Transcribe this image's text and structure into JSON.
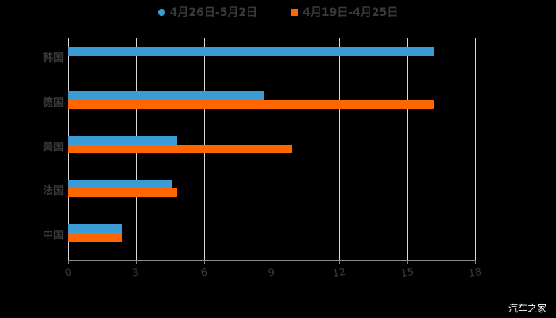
{
  "chart_data": {
    "type": "bar",
    "orientation": "horizontal",
    "title": "",
    "xlabel": "",
    "ylabel": "",
    "categories": [
      "韩国",
      "德国",
      "美国",
      "法国",
      "中国"
    ],
    "series": [
      {
        "name": "4月26日-5月2日",
        "color": "#3a9bd5",
        "values": [
          16.2,
          8.7,
          4.8,
          4.6,
          2.4
        ]
      },
      {
        "name": "4月19日-4月25日",
        "color": "#ff6600",
        "values": [
          null,
          16.2,
          9.9,
          4.8,
          2.4
        ]
      }
    ],
    "xlim": [
      0,
      18
    ],
    "xticks": [
      0,
      3,
      6,
      9,
      12,
      15,
      18
    ],
    "grid": true,
    "legend_position": "top"
  },
  "legend": {
    "series0": "4月26日-5月2日",
    "series1": "4月19日-4月25日"
  },
  "axis": {
    "ticks": [
      "0",
      "3",
      "6",
      "9",
      "12",
      "15",
      "18"
    ]
  },
  "categories": [
    "韩国",
    "德国",
    "美国",
    "法国",
    "中国"
  ],
  "watermark": "汽车之家"
}
